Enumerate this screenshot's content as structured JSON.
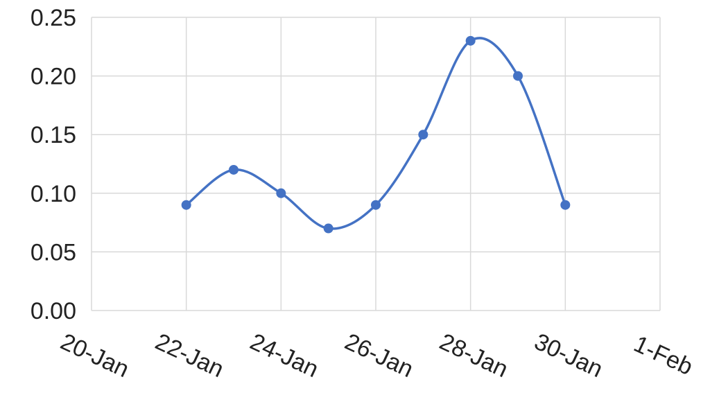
{
  "chart_data": {
    "type": "line",
    "title": "",
    "xlabel": "",
    "ylabel": "",
    "smooth": true,
    "markers": true,
    "legend": "none",
    "grid": true,
    "xlim": [
      "20-Jan",
      "1-Feb"
    ],
    "ylim": [
      0,
      0.25
    ],
    "x_ticks": [
      "20-Jan",
      "22-Jan",
      "24-Jan",
      "26-Jan",
      "28-Jan",
      "30-Jan",
      "1-Feb"
    ],
    "y_ticks": [
      "0.00",
      "0.05",
      "0.10",
      "0.15",
      "0.20",
      "0.25"
    ],
    "y_tick_values": [
      0,
      0.05,
      0.1,
      0.15,
      0.2,
      0.25
    ],
    "series": [
      {
        "color": "#4472c4",
        "x": [
          "22-Jan",
          "23-Jan",
          "24-Jan",
          "25-Jan",
          "26-Jan",
          "27-Jan",
          "28-Jan",
          "29-Jan",
          "30-Jan"
        ],
        "y": [
          0.09,
          0.12,
          0.1,
          0.07,
          0.09,
          0.15,
          0.23,
          0.2,
          0.09
        ]
      }
    ]
  }
}
